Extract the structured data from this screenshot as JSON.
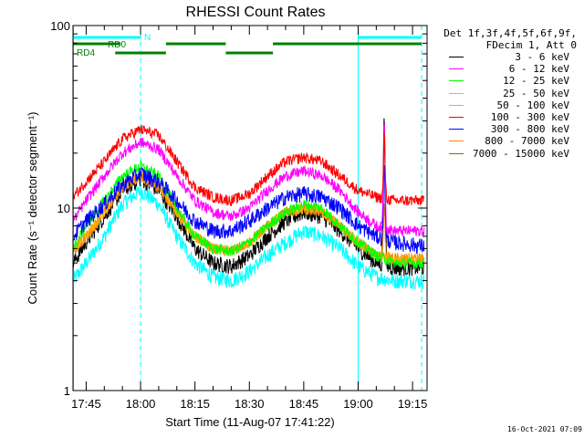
{
  "chart_data": {
    "type": "line",
    "title": "RHESSI Count Rates",
    "xlabel": "Start Time (11-Aug-07 17:41:22)",
    "ylabel": "Count Rate (s⁻¹ detector segment⁻¹)",
    "yscale": "log",
    "ylim": [
      1,
      100
    ],
    "y_ticks": [
      1,
      10,
      100
    ],
    "x_ticks": [
      "17:45",
      "18:00",
      "18:15",
      "18:30",
      "18:45",
      "19:00",
      "19:15"
    ],
    "x_tick_minutes": [
      225,
      240,
      255,
      270,
      285,
      300,
      315
    ],
    "xlim_minutes": [
      221.37,
      319.0
    ],
    "grid": false,
    "legend": {
      "placement": "outside-right",
      "header": [
        "Det 1f,3f,4f,5f,6f,9f,",
        "FDecim 1, Att 0"
      ],
      "entries": [
        {
          "label": "3 - 6 keV",
          "color": "#000000"
        },
        {
          "label": "6 - 12 keV",
          "color": "#ff00ff"
        },
        {
          "label": "12 - 25 keV",
          "color": "#00ff00"
        },
        {
          "label": "25 - 50 keV",
          "color": "#00ffff"
        },
        {
          "label": "50 - 100 keV",
          "color": "#ffaa00"
        },
        {
          "label": "100 - 300 keV",
          "color": "#ff0000"
        },
        {
          "label": "300 - 800 keV",
          "color": "#0000ff"
        },
        {
          "label": "800 - 7000 keV",
          "color": "#ff8800"
        },
        {
          "label": "7000 - 15000 keV",
          "color": "#807000"
        }
      ]
    },
    "series": [
      {
        "name": "100 - 300 keV",
        "color": "#ff0000",
        "x_minutes": [
          221.4,
          225,
          230,
          235,
          240,
          245,
          250,
          255,
          260,
          265,
          270,
          275,
          280,
          285,
          290,
          295,
          300,
          305,
          310,
          315,
          318
        ],
        "values": [
          11.5,
          14,
          18,
          24,
          27,
          25,
          18,
          13,
          11.5,
          11,
          12,
          15,
          18,
          19,
          18,
          15,
          12.5,
          11.5,
          11,
          11,
          11
        ]
      },
      {
        "name": "6 - 12 keV",
        "color": "#ff00ff",
        "x_minutes": [
          221.4,
          225,
          230,
          235,
          240,
          245,
          250,
          255,
          260,
          265,
          270,
          275,
          280,
          285,
          290,
          295,
          300,
          305,
          310,
          315,
          318
        ],
        "values": [
          8.5,
          11,
          15,
          20,
          23,
          21,
          15,
          11,
          9.5,
          9,
          10,
          12.5,
          15,
          16,
          15,
          12.5,
          9.5,
          8,
          7.5,
          7.5,
          7.5
        ]
      },
      {
        "name": "12 - 25 keV",
        "color": "#00ff00",
        "x_minutes": [
          221.4,
          225,
          230,
          235,
          240,
          245,
          250,
          255,
          260,
          265,
          270,
          275,
          280,
          285,
          290,
          295,
          300,
          305,
          310,
          315,
          318
        ],
        "values": [
          6,
          8,
          11,
          15,
          17,
          15,
          10,
          7,
          6,
          5.8,
          6.5,
          8,
          9.5,
          10.5,
          10,
          8,
          6.5,
          5.5,
          5,
          5,
          5
        ]
      },
      {
        "name": "300 - 800 keV",
        "color": "#0000ff",
        "x_minutes": [
          221.4,
          225,
          230,
          235,
          240,
          245,
          250,
          255,
          260,
          265,
          270,
          275,
          280,
          285,
          290,
          295,
          300,
          305,
          310,
          315,
          318
        ],
        "values": [
          7,
          8.5,
          10.5,
          13.5,
          15.5,
          14,
          11,
          8.5,
          7.5,
          7.5,
          8.5,
          10,
          11.5,
          12,
          11.5,
          10,
          8,
          7,
          6.5,
          6.3,
          6.2
        ]
      },
      {
        "name": "50 - 100 keV",
        "color": "#ffaa00",
        "x_minutes": [
          221.4,
          225,
          230,
          235,
          240,
          245,
          250,
          255,
          260,
          265,
          270,
          275,
          280,
          285,
          290,
          295,
          300,
          305,
          310,
          315,
          318
        ],
        "values": [
          5.8,
          7,
          9.5,
          13,
          15,
          13,
          9.5,
          7,
          6,
          5.8,
          6.5,
          8,
          9.5,
          10,
          9.5,
          8,
          6.5,
          5.5,
          5.2,
          5.2,
          5.2
        ]
      },
      {
        "name": "3 - 6 keV",
        "color": "#000000",
        "x_minutes": [
          221.4,
          225,
          230,
          235,
          240,
          245,
          250,
          255,
          260,
          265,
          270,
          275,
          280,
          285,
          290,
          295,
          300,
          305,
          310,
          315,
          318
        ],
        "values": [
          5,
          6.5,
          9,
          12.5,
          14.5,
          12.5,
          9,
          6,
          5,
          4.8,
          5.5,
          7,
          8.5,
          9.5,
          9,
          7.5,
          6,
          5,
          4.7,
          4.7,
          4.7
        ]
      },
      {
        "name": "25 - 50 keV",
        "color": "#00ffff",
        "x_minutes": [
          221.4,
          225,
          230,
          235,
          240,
          245,
          250,
          255,
          260,
          265,
          270,
          275,
          280,
          285,
          290,
          295,
          300,
          305,
          310,
          315,
          318
        ],
        "values": [
          4,
          5,
          7,
          10.5,
          12.5,
          10.5,
          7,
          5,
          4.2,
          4,
          4.5,
          5.5,
          6.5,
          7.5,
          7,
          6,
          4.8,
          4.2,
          4,
          4,
          4
        ]
      },
      {
        "name": "800 - 7000 keV",
        "color": "#ff8800",
        "x_minutes": [
          221.4,
          225,
          230,
          235,
          240,
          245,
          250,
          255,
          260,
          265,
          270,
          275,
          280,
          285,
          290,
          295,
          300,
          305,
          310,
          315,
          318
        ],
        "values": [
          5.8,
          7,
          9.5,
          13,
          15,
          13,
          9.5,
          7,
          6,
          5.8,
          6.5,
          8,
          9.5,
          10,
          9.5,
          8,
          6.5,
          5.5,
          5.3,
          5.3,
          5.3
        ]
      }
    ],
    "spike": {
      "x_minute": 307.2,
      "peaks": {
        "#ff00ff": 34,
        "#000000": 38,
        "#ff0000": 28,
        "#0000ff": 20,
        "#ff8800": 12
      }
    },
    "annotations": [
      {
        "label": "RD0",
        "y_level": "upper"
      },
      {
        "label": "RD4",
        "y_level": "lower"
      },
      {
        "label": "N",
        "y_level": "top"
      }
    ],
    "annotation_bars": [
      {
        "level": "top",
        "color": "#00ffff",
        "segments": [
          [
            221.4,
            240.0
          ],
          [
            300.0,
            317.5
          ]
        ]
      },
      {
        "level": "upper",
        "color": "#008000",
        "segments": [
          [
            221.4,
            234.5
          ],
          [
            247.0,
            263.5
          ],
          [
            276.5,
            317.5
          ]
        ]
      },
      {
        "level": "lower",
        "color": "#008000",
        "segments": [
          [
            233.0,
            247.0
          ],
          [
            263.5,
            276.5
          ]
        ]
      }
    ],
    "vertical_markers": [
      {
        "x_minute": 221.5,
        "style": "solid",
        "color": "#00ffff"
      },
      {
        "x_minute": 240.0,
        "style": "dashed",
        "color": "#00ffff"
      },
      {
        "x_minute": 300.0,
        "style": "solid",
        "color": "#00ffff"
      },
      {
        "x_minute": 317.5,
        "style": "dashed",
        "color": "#00ffff"
      }
    ]
  },
  "timestamp": "16-Oct-2021 07:09"
}
